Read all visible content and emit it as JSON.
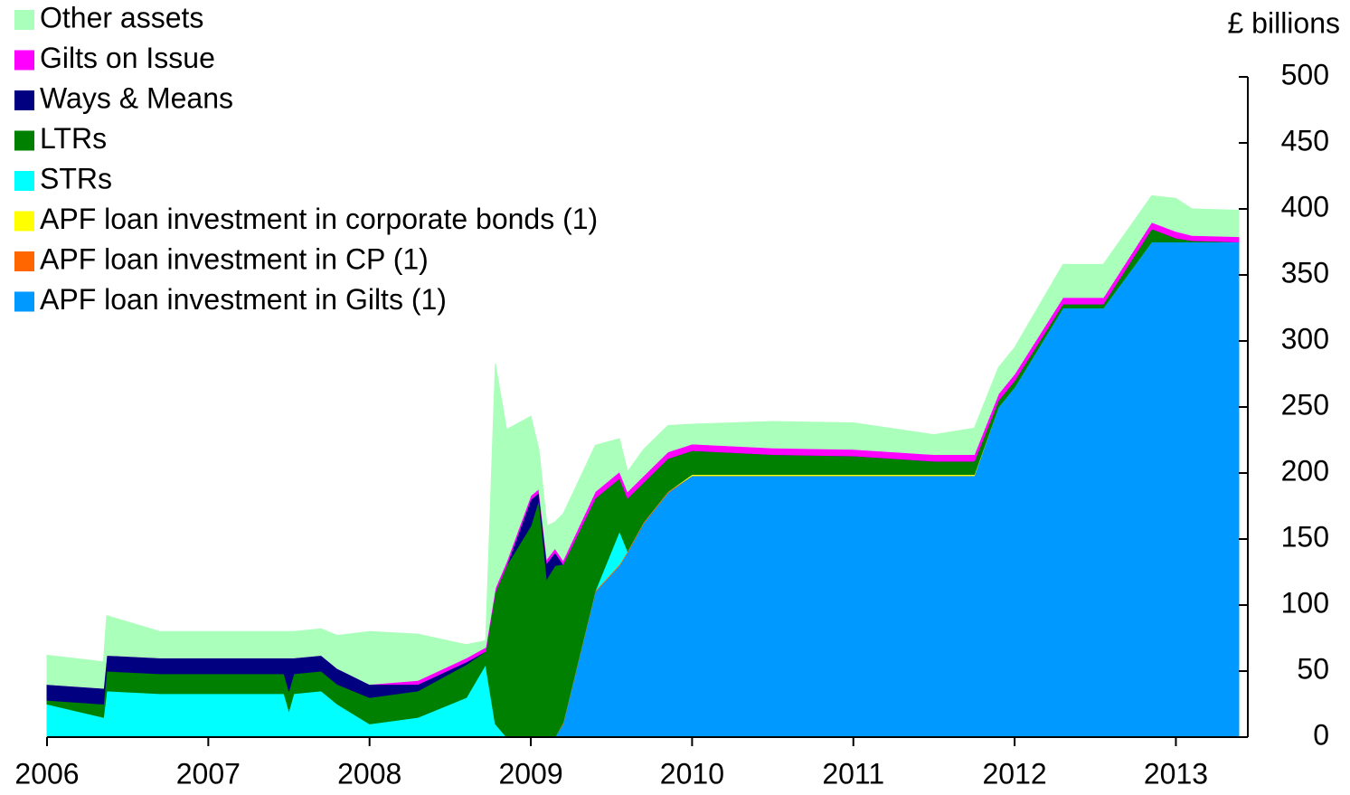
{
  "chart_data": {
    "type": "stacked_area",
    "y_label": "£ billions",
    "x": [
      2006.0,
      2006.35,
      2006.37,
      2006.7,
      2007.0,
      2007.47,
      2007.5,
      2007.53,
      2007.7,
      2007.8,
      2008.0,
      2008.3,
      2008.6,
      2008.72,
      2008.78,
      2008.85,
      2009.0,
      2009.05,
      2009.1,
      2009.15,
      2009.2,
      2009.4,
      2009.55,
      2009.6,
      2009.7,
      2009.85,
      2010.0,
      2010.5,
      2011.0,
      2011.5,
      2011.75,
      2011.9,
      2012.0,
      2012.3,
      2012.55,
      2012.85,
      2013.0,
      2013.1,
      2013.39
    ],
    "xlim": [
      2006,
      2013.39
    ],
    "xticks": [
      2006,
      2007,
      2008,
      2009,
      2010,
      2011,
      2012,
      2013
    ],
    "ylim": [
      0,
      500
    ],
    "yticks": [
      0,
      50,
      100,
      150,
      200,
      250,
      300,
      350,
      400,
      450,
      500
    ],
    "series": [
      {
        "name": "APF loan investment in Gilts (1)",
        "color": "#0099ff",
        "values": [
          0,
          0,
          0,
          0,
          0,
          0,
          0,
          0,
          0,
          0,
          0,
          0,
          0,
          0,
          0,
          0,
          0,
          0,
          0,
          0,
          10,
          110,
          130,
          140,
          162,
          185,
          198,
          198,
          198,
          198,
          198,
          250,
          265,
          325,
          325,
          375,
          375,
          375,
          375
        ]
      },
      {
        "name": "APF loan investment in CP (1)",
        "color": "#ff6600",
        "values": [
          0,
          0,
          0,
          0,
          0,
          0,
          0,
          0,
          0,
          0,
          0,
          0,
          0,
          0,
          0,
          0,
          0,
          0,
          0,
          0,
          1,
          1,
          1,
          1,
          1,
          1,
          0,
          0,
          0,
          0,
          0,
          0,
          0,
          0,
          0,
          0,
          0,
          0,
          0
        ]
      },
      {
        "name": "APF loan investment in corporate bonds (1)",
        "color": "#ffff00",
        "values": [
          0,
          0,
          0,
          0,
          0,
          0,
          0,
          0,
          0,
          0,
          0,
          0,
          0,
          0,
          0,
          0,
          0,
          0,
          0,
          0,
          0,
          0,
          0,
          0,
          0,
          0,
          1,
          1,
          1,
          1,
          1,
          0,
          0,
          0,
          0,
          0,
          0,
          0,
          0
        ]
      },
      {
        "name": "STRs",
        "color": "#00ffff",
        "values": [
          25,
          15,
          35,
          33,
          33,
          33,
          20,
          33,
          35,
          25,
          10,
          15,
          30,
          55,
          10,
          0,
          0,
          0,
          0,
          0,
          0,
          0,
          25,
          0,
          0,
          0,
          0,
          0,
          0,
          0,
          0,
          0,
          0,
          0,
          0,
          0,
          0,
          0,
          0
        ]
      },
      {
        "name": "LTRs",
        "color": "#008000",
        "values": [
          3,
          10,
          15,
          15,
          15,
          15,
          15,
          15,
          15,
          15,
          20,
          20,
          25,
          10,
          100,
          130,
          160,
          180,
          120,
          130,
          120,
          70,
          40,
          40,
          30,
          25,
          18,
          15,
          14,
          10,
          10,
          5,
          5,
          3,
          3,
          10,
          3,
          1,
          0
        ]
      },
      {
        "name": "Ways & Means",
        "color": "#000080",
        "values": [
          12,
          12,
          12,
          12,
          12,
          12,
          25,
          12,
          12,
          12,
          10,
          5,
          2,
          0,
          0,
          0,
          20,
          5,
          12,
          10,
          0,
          0,
          0,
          0,
          0,
          0,
          0,
          0,
          0,
          0,
          0,
          0,
          0,
          0,
          0,
          0,
          0,
          0,
          0
        ]
      },
      {
        "name": "Gilts on Issue",
        "color": "#ff00ff",
        "values": [
          0,
          0,
          0,
          0,
          0,
          0,
          0,
          0,
          0,
          0,
          0,
          3,
          3,
          3,
          3,
          3,
          3,
          3,
          3,
          3,
          3,
          5,
          5,
          5,
          5,
          5,
          5,
          5,
          5,
          5,
          5,
          5,
          5,
          5,
          5,
          5,
          5,
          4,
          4
        ]
      },
      {
        "name": "Other assets",
        "color": "#aaffbb",
        "values": [
          22,
          20,
          30,
          20,
          20,
          20,
          20,
          20,
          20,
          25,
          40,
          35,
          10,
          5,
          170,
          100,
          60,
          30,
          25,
          20,
          35,
          35,
          25,
          15,
          20,
          20,
          15,
          20,
          20,
          15,
          20,
          20,
          20,
          25,
          25,
          20,
          25,
          20,
          20
        ]
      }
    ]
  }
}
